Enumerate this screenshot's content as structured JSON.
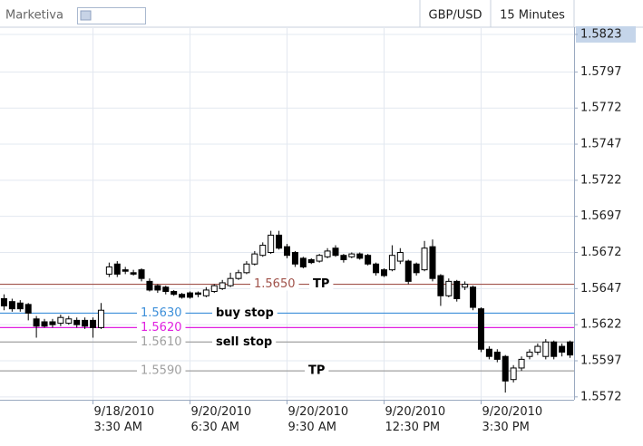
{
  "header": {
    "brand": "Marketiva",
    "symbol": "GBP/USD",
    "interval": "15 Minutes"
  },
  "chart_data": {
    "type": "candlestick",
    "categories": [
      null,
      null,
      null,
      null,
      null,
      null,
      null,
      null,
      null,
      null,
      null,
      "9/18/2010\n3:30 AM",
      null,
      null,
      null,
      null,
      null,
      null,
      null,
      null,
      null,
      null,
      null,
      "9/20/2010\n6:30 AM",
      null,
      null,
      null,
      null,
      null,
      null,
      null,
      null,
      null,
      null,
      null,
      "9/20/2010\n9:30 AM",
      null,
      null,
      null,
      null,
      null,
      null,
      null,
      null,
      null,
      null,
      null,
      "9/20/2010\n12:30 PM",
      null,
      null,
      null,
      null,
      null,
      null,
      null,
      null,
      null,
      null,
      null,
      "9/20/2010\n3:30 PM",
      null,
      null,
      null,
      null,
      null,
      null,
      null,
      null,
      null,
      null,
      null
    ],
    "open": [
      1.564,
      1.5638,
      1.5637,
      1.5636,
      1.5626,
      1.5624,
      1.5624,
      1.5623,
      1.5623,
      1.5625,
      1.5625,
      1.5625,
      1.562,
      1.5657,
      1.5664,
      1.566,
      1.5658,
      1.566,
      1.5652,
      1.5649,
      1.5648,
      1.5645,
      1.5643,
      1.5644,
      1.5644,
      1.5642,
      1.5645,
      1.5647,
      1.5649,
      1.5654,
      1.5658,
      1.5664,
      1.567,
      1.5672,
      1.5684,
      1.5676,
      1.5672,
      1.5668,
      1.5667,
      1.5666,
      1.5669,
      1.5675,
      1.567,
      1.5669,
      1.5671,
      1.567,
      1.5664,
      1.566,
      1.566,
      1.5666,
      1.5666,
      1.5664,
      1.566,
      1.5676,
      1.5656,
      1.5642,
      1.5652,
      1.5648,
      1.5648,
      1.5633,
      1.5605,
      1.5603,
      1.56,
      1.5584,
      1.5592,
      1.56,
      1.5603,
      1.56,
      1.561,
      1.5607,
      1.561
    ],
    "high": [
      1.5643,
      1.564,
      1.5639,
      1.5637,
      1.5628,
      1.5626,
      1.5626,
      1.5629,
      1.5628,
      1.5627,
      1.5627,
      1.5627,
      1.5637,
      1.5665,
      1.5666,
      1.5662,
      1.566,
      1.5661,
      1.5654,
      1.565,
      1.5649,
      1.5646,
      1.5644,
      1.5645,
      1.5645,
      1.5648,
      1.565,
      1.5653,
      1.5658,
      1.566,
      1.5666,
      1.5673,
      1.5679,
      1.5687,
      1.5687,
      1.5678,
      1.5673,
      1.5669,
      1.5668,
      1.5671,
      1.5675,
      1.5677,
      1.5671,
      1.5672,
      1.5672,
      1.5671,
      1.5665,
      1.5661,
      1.5677,
      1.5675,
      1.5667,
      1.5665,
      1.568,
      1.5681,
      1.5657,
      1.5654,
      1.5653,
      1.5652,
      1.5649,
      1.5634,
      1.5607,
      1.5605,
      1.5601,
      1.5594,
      1.56,
      1.5605,
      1.5609,
      1.5612,
      1.5611,
      1.5609,
      1.5611
    ],
    "low": [
      1.5632,
      1.5631,
      1.5631,
      1.5625,
      1.5613,
      1.562,
      1.562,
      1.5621,
      1.5622,
      1.562,
      1.5619,
      1.5613,
      1.5619,
      1.5655,
      1.5655,
      1.5657,
      1.5656,
      1.5652,
      1.5645,
      1.5644,
      1.5643,
      1.5642,
      1.564,
      1.564,
      1.5641,
      1.5641,
      1.5644,
      1.5646,
      1.5648,
      1.5653,
      1.5657,
      1.5663,
      1.5669,
      1.5671,
      1.5674,
      1.5668,
      1.5662,
      1.5661,
      1.5664,
      1.5665,
      1.5668,
      1.5669,
      1.5665,
      1.5668,
      1.5667,
      1.5663,
      1.5656,
      1.5655,
      1.5659,
      1.5664,
      1.565,
      1.5656,
      1.5659,
      1.5652,
      1.5635,
      1.5641,
      1.5638,
      1.5646,
      1.5632,
      1.5603,
      1.5598,
      1.5596,
      1.5575,
      1.5582,
      1.559,
      1.5598,
      1.5601,
      1.5598,
      1.5598,
      1.56,
      1.5599
    ],
    "close": [
      1.5635,
      1.5633,
      1.5633,
      1.563,
      1.5621,
      1.5621,
      1.5622,
      1.5627,
      1.5626,
      1.5622,
      1.5621,
      1.562,
      1.5632,
      1.5662,
      1.5657,
      1.5659,
      1.5657,
      1.5654,
      1.5646,
      1.5646,
      1.5645,
      1.5643,
      1.5641,
      1.5641,
      1.5643,
      1.5646,
      1.5649,
      1.5651,
      1.5654,
      1.5658,
      1.5664,
      1.5671,
      1.5677,
      1.5684,
      1.5675,
      1.567,
      1.5664,
      1.5662,
      1.5665,
      1.567,
      1.5673,
      1.567,
      1.5667,
      1.5671,
      1.5668,
      1.5664,
      1.5658,
      1.5656,
      1.567,
      1.5672,
      1.5652,
      1.5658,
      1.5675,
      1.5654,
      1.5642,
      1.5652,
      1.564,
      1.565,
      1.5634,
      1.5605,
      1.56,
      1.5598,
      1.5583,
      1.5592,
      1.5598,
      1.5603,
      1.5607,
      1.561,
      1.56,
      1.5603,
      1.5601
    ],
    "ylim": [
      1.557,
      1.5828
    ],
    "yticks": [
      1.5823,
      1.5797,
      1.5772,
      1.5747,
      1.5722,
      1.5697,
      1.5672,
      1.5647,
      1.5622,
      1.5597,
      1.5572
    ],
    "grid": true,
    "levels": [
      {
        "value": 1.565,
        "label": "1.5650",
        "text": "TP",
        "color": "#a0524a"
      },
      {
        "value": 1.563,
        "label": "1.5630",
        "text": "buy stop",
        "color": "#3d8fd9"
      },
      {
        "value": 1.562,
        "label": "1.5620",
        "color": "#e020e0"
      },
      {
        "value": 1.561,
        "label": "1.5610",
        "text": "sell stop",
        "color": "#a0a0a0"
      },
      {
        "value": 1.559,
        "label": "1.5590",
        "text": "TP",
        "color": "#a0a0a0"
      }
    ]
  }
}
